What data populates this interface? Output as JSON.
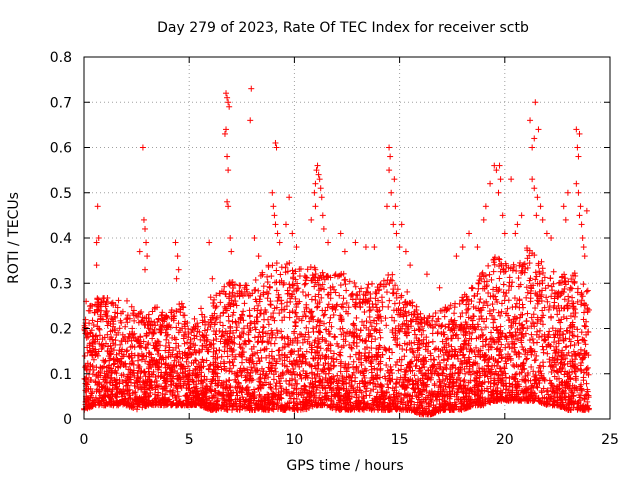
{
  "chart_data": {
    "type": "scatter",
    "title": "Day 279 of 2023, Rate Of TEC Index for receiver sctb",
    "xlabel": "GPS time / hours",
    "ylabel": "ROTI / TECUs",
    "xlim": [
      0,
      25
    ],
    "ylim": [
      0,
      0.8
    ],
    "xticks": [
      "0",
      "5",
      "10",
      "15",
      "20",
      "25"
    ],
    "yticks": [
      "0",
      "0.1",
      "0.2",
      "0.3",
      "0.4",
      "0.5",
      "0.6",
      "0.7",
      "0.8"
    ],
    "grid": true,
    "legend": "none",
    "marker": "+",
    "color": "#ff0000",
    "envelope_x": [
      0,
      0.5,
      1,
      1.5,
      2,
      2.5,
      3,
      3.5,
      4,
      4.5,
      5,
      5.5,
      6,
      6.5,
      7,
      7.5,
      8,
      8.5,
      9,
      9.5,
      10,
      10.5,
      11,
      11.5,
      12,
      12.5,
      13,
      13.5,
      14,
      14.5,
      15,
      15.5,
      16,
      16.5,
      17,
      17.5,
      18,
      18.5,
      19,
      19.5,
      20,
      20.5,
      21,
      21.5,
      22,
      22.5,
      23,
      23.5,
      24
    ],
    "envelope_typical_max": [
      0.22,
      0.28,
      0.27,
      0.26,
      0.27,
      0.24,
      0.25,
      0.25,
      0.23,
      0.27,
      0.22,
      0.25,
      0.27,
      0.29,
      0.32,
      0.3,
      0.3,
      0.33,
      0.35,
      0.36,
      0.34,
      0.33,
      0.35,
      0.32,
      0.33,
      0.32,
      0.3,
      0.3,
      0.3,
      0.34,
      0.29,
      0.28,
      0.25,
      0.24,
      0.24,
      0.26,
      0.28,
      0.3,
      0.33,
      0.36,
      0.35,
      0.34,
      0.38,
      0.36,
      0.34,
      0.32,
      0.33,
      0.32,
      0.29
    ],
    "envelope_min": [
      0.02,
      0.03,
      0.03,
      0.03,
      0.03,
      0.02,
      0.03,
      0.03,
      0.03,
      0.03,
      0.03,
      0.03,
      0.02,
      0.02,
      0.02,
      0.02,
      0.02,
      0.02,
      0.02,
      0.02,
      0.02,
      0.02,
      0.03,
      0.03,
      0.02,
      0.02,
      0.02,
      0.02,
      0.02,
      0.02,
      0.02,
      0.02,
      0.01,
      0.01,
      0.02,
      0.02,
      0.02,
      0.03,
      0.03,
      0.04,
      0.04,
      0.04,
      0.04,
      0.04,
      0.03,
      0.03,
      0.02,
      0.02,
      0.02
    ],
    "outliers": [
      {
        "x": 0.1,
        "y": 0.26
      },
      {
        "x": 0.6,
        "y": 0.39
      },
      {
        "x": 0.65,
        "y": 0.47
      },
      {
        "x": 0.7,
        "y": 0.4
      },
      {
        "x": 0.6,
        "y": 0.34
      },
      {
        "x": 2.65,
        "y": 0.37
      },
      {
        "x": 2.8,
        "y": 0.6
      },
      {
        "x": 2.85,
        "y": 0.44
      },
      {
        "x": 2.9,
        "y": 0.42
      },
      {
        "x": 2.95,
        "y": 0.39
      },
      {
        "x": 3.0,
        "y": 0.36
      },
      {
        "x": 2.9,
        "y": 0.33
      },
      {
        "x": 4.35,
        "y": 0.39
      },
      {
        "x": 4.45,
        "y": 0.36
      },
      {
        "x": 4.5,
        "y": 0.33
      },
      {
        "x": 4.4,
        "y": 0.31
      },
      {
        "x": 5.95,
        "y": 0.39
      },
      {
        "x": 6.1,
        "y": 0.31
      },
      {
        "x": 6.7,
        "y": 0.63
      },
      {
        "x": 6.75,
        "y": 0.72
      },
      {
        "x": 6.8,
        "y": 0.71
      },
      {
        "x": 6.85,
        "y": 0.7
      },
      {
        "x": 6.9,
        "y": 0.69
      },
      {
        "x": 6.75,
        "y": 0.64
      },
      {
        "x": 6.8,
        "y": 0.58
      },
      {
        "x": 6.85,
        "y": 0.55
      },
      {
        "x": 6.8,
        "y": 0.48
      },
      {
        "x": 6.85,
        "y": 0.47
      },
      {
        "x": 6.95,
        "y": 0.4
      },
      {
        "x": 7.0,
        "y": 0.37
      },
      {
        "x": 7.95,
        "y": 0.73
      },
      {
        "x": 7.9,
        "y": 0.66
      },
      {
        "x": 8.1,
        "y": 0.4
      },
      {
        "x": 8.3,
        "y": 0.36
      },
      {
        "x": 9.1,
        "y": 0.61
      },
      {
        "x": 9.15,
        "y": 0.6
      },
      {
        "x": 8.95,
        "y": 0.5
      },
      {
        "x": 9.0,
        "y": 0.47
      },
      {
        "x": 9.05,
        "y": 0.45
      },
      {
        "x": 9.1,
        "y": 0.43
      },
      {
        "x": 9.2,
        "y": 0.41
      },
      {
        "x": 9.3,
        "y": 0.39
      },
      {
        "x": 9.6,
        "y": 0.43
      },
      {
        "x": 9.75,
        "y": 0.49
      },
      {
        "x": 9.9,
        "y": 0.41
      },
      {
        "x": 10.1,
        "y": 0.38
      },
      {
        "x": 10.8,
        "y": 0.44
      },
      {
        "x": 10.95,
        "y": 0.5
      },
      {
        "x": 11.0,
        "y": 0.52
      },
      {
        "x": 11.05,
        "y": 0.55
      },
      {
        "x": 11.1,
        "y": 0.56
      },
      {
        "x": 11.15,
        "y": 0.54
      },
      {
        "x": 11.2,
        "y": 0.53
      },
      {
        "x": 11.25,
        "y": 0.51
      },
      {
        "x": 11.3,
        "y": 0.49
      },
      {
        "x": 11.0,
        "y": 0.47
      },
      {
        "x": 11.35,
        "y": 0.45
      },
      {
        "x": 11.4,
        "y": 0.42
      },
      {
        "x": 11.6,
        "y": 0.39
      },
      {
        "x": 12.2,
        "y": 0.41
      },
      {
        "x": 12.4,
        "y": 0.37
      },
      {
        "x": 12.9,
        "y": 0.39
      },
      {
        "x": 13.4,
        "y": 0.38
      },
      {
        "x": 13.8,
        "y": 0.38
      },
      {
        "x": 14.5,
        "y": 0.6
      },
      {
        "x": 14.55,
        "y": 0.58
      },
      {
        "x": 14.5,
        "y": 0.55
      },
      {
        "x": 14.6,
        "y": 0.5
      },
      {
        "x": 14.75,
        "y": 0.53
      },
      {
        "x": 14.8,
        "y": 0.47
      },
      {
        "x": 14.4,
        "y": 0.47
      },
      {
        "x": 14.7,
        "y": 0.43
      },
      {
        "x": 14.85,
        "y": 0.41
      },
      {
        "x": 15.0,
        "y": 0.38
      },
      {
        "x": 15.1,
        "y": 0.43
      },
      {
        "x": 15.3,
        "y": 0.37
      },
      {
        "x": 15.5,
        "y": 0.34
      },
      {
        "x": 16.3,
        "y": 0.32
      },
      {
        "x": 16.9,
        "y": 0.29
      },
      {
        "x": 17.7,
        "y": 0.36
      },
      {
        "x": 18.0,
        "y": 0.38
      },
      {
        "x": 18.3,
        "y": 0.41
      },
      {
        "x": 18.7,
        "y": 0.38
      },
      {
        "x": 19.0,
        "y": 0.44
      },
      {
        "x": 19.1,
        "y": 0.47
      },
      {
        "x": 19.3,
        "y": 0.52
      },
      {
        "x": 19.5,
        "y": 0.56
      },
      {
        "x": 19.6,
        "y": 0.55
      },
      {
        "x": 19.7,
        "y": 0.5
      },
      {
        "x": 19.75,
        "y": 0.56
      },
      {
        "x": 19.8,
        "y": 0.53
      },
      {
        "x": 19.9,
        "y": 0.45
      },
      {
        "x": 20.0,
        "y": 0.41
      },
      {
        "x": 20.3,
        "y": 0.53
      },
      {
        "x": 20.5,
        "y": 0.41
      },
      {
        "x": 20.6,
        "y": 0.43
      },
      {
        "x": 20.8,
        "y": 0.45
      },
      {
        "x": 21.2,
        "y": 0.66
      },
      {
        "x": 21.3,
        "y": 0.6
      },
      {
        "x": 21.4,
        "y": 0.62
      },
      {
        "x": 21.45,
        "y": 0.7
      },
      {
        "x": 21.6,
        "y": 0.64
      },
      {
        "x": 21.3,
        "y": 0.53
      },
      {
        "x": 21.4,
        "y": 0.51
      },
      {
        "x": 21.55,
        "y": 0.49
      },
      {
        "x": 21.7,
        "y": 0.47
      },
      {
        "x": 21.5,
        "y": 0.45
      },
      {
        "x": 21.8,
        "y": 0.44
      },
      {
        "x": 22.0,
        "y": 0.41
      },
      {
        "x": 22.2,
        "y": 0.4
      },
      {
        "x": 22.8,
        "y": 0.47
      },
      {
        "x": 22.9,
        "y": 0.44
      },
      {
        "x": 23.0,
        "y": 0.5
      },
      {
        "x": 23.4,
        "y": 0.64
      },
      {
        "x": 23.45,
        "y": 0.6
      },
      {
        "x": 23.5,
        "y": 0.58
      },
      {
        "x": 23.55,
        "y": 0.63
      },
      {
        "x": 23.4,
        "y": 0.52
      },
      {
        "x": 23.5,
        "y": 0.5
      },
      {
        "x": 23.6,
        "y": 0.47
      },
      {
        "x": 23.55,
        "y": 0.45
      },
      {
        "x": 23.65,
        "y": 0.43
      },
      {
        "x": 23.7,
        "y": 0.4
      },
      {
        "x": 23.75,
        "y": 0.38
      },
      {
        "x": 23.8,
        "y": 0.36
      },
      {
        "x": 23.9,
        "y": 0.46
      }
    ]
  }
}
